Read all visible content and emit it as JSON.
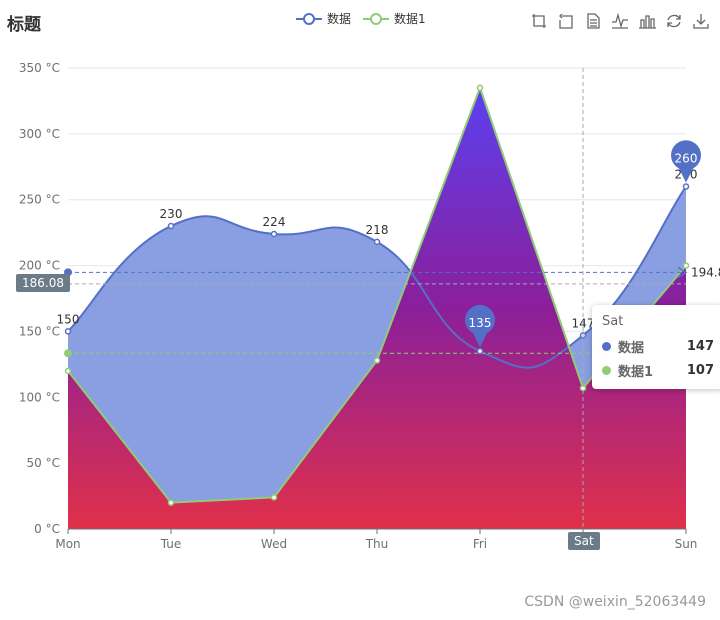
{
  "title": "标题",
  "legend": [
    {
      "name": "数据",
      "color": "#5470c6"
    },
    {
      "name": "数据1",
      "color": "#91cc75"
    }
  ],
  "toolbox": [
    "zoom-icon",
    "zoom-reset-icon",
    "data-view-icon",
    "line-chart-icon",
    "bar-chart-icon",
    "restore-icon",
    "save-image-icon"
  ],
  "tooltip": {
    "title": "Sat",
    "rows": [
      {
        "name": "数据",
        "value": "147",
        "color": "#5470c6"
      },
      {
        "name": "数据1",
        "value": "107",
        "color": "#91cc75"
      }
    ]
  },
  "axis_pointer": {
    "y_value": "186.08",
    "x_value": "Sat"
  },
  "watermark": "CSDN @weixin_52063449",
  "chart_data": {
    "type": "line",
    "categories": [
      "Mon",
      "Tue",
      "Wed",
      "Thu",
      "Fri",
      "Sat",
      "Sun"
    ],
    "ylim": [
      0,
      350
    ],
    "yticks": [
      "0 °C",
      "50 °C",
      "100 °C",
      "150 °C",
      "200 °C",
      "250 °C",
      "300 °C",
      "350 °C"
    ],
    "series": [
      {
        "name": "数据",
        "values": [
          150,
          230,
          224,
          218,
          135,
          147,
          260
        ],
        "color": "#5470c6",
        "smooth": true,
        "max_pin": "260",
        "min_pin": "135",
        "visible_labels": [
          "150",
          "230",
          "224",
          "218",
          "147",
          "260"
        ],
        "mark_line_value": "194.8"
      },
      {
        "name": "数据1",
        "values": [
          120,
          20,
          24,
          128,
          335,
          107,
          200
        ],
        "color": "#91cc75",
        "smooth": false,
        "mark_line_value": "133.4"
      }
    ],
    "grid": true,
    "legend_position": "top-center"
  }
}
